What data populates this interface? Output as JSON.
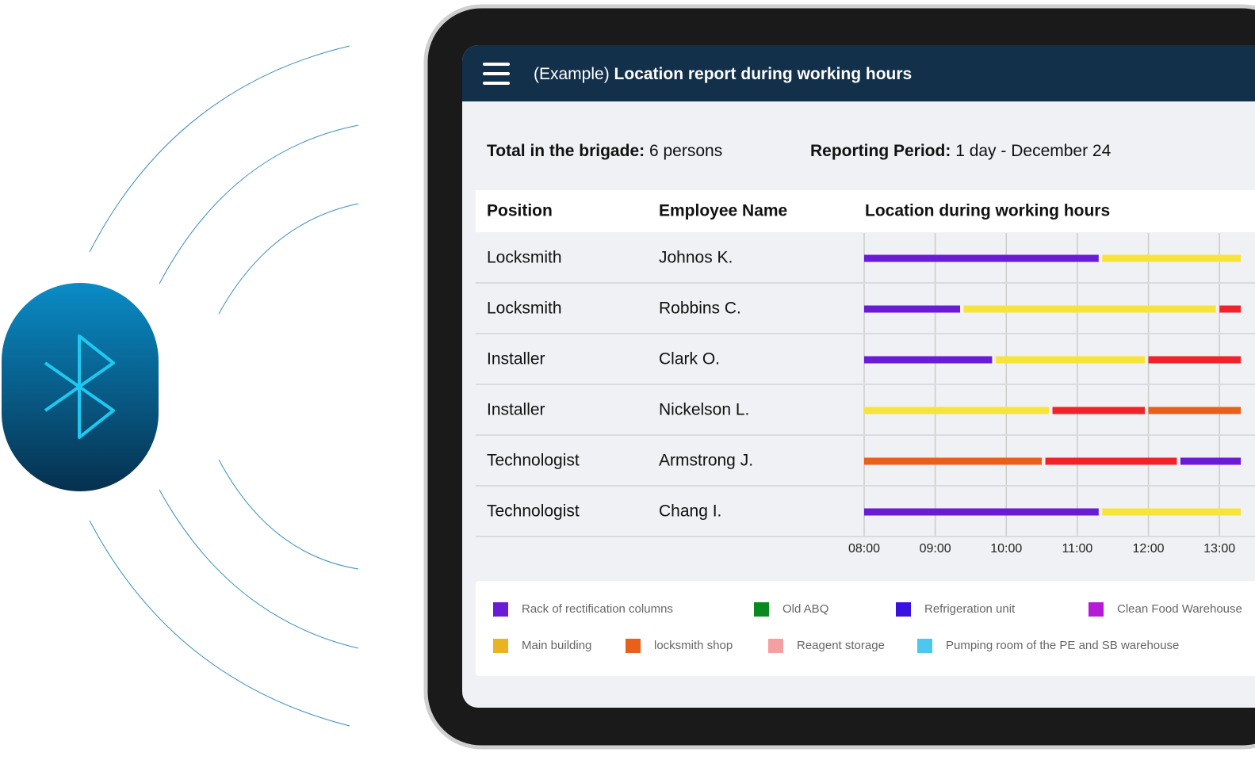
{
  "header": {
    "title_prefix": "(Example)",
    "title": "Location report during working hours"
  },
  "summary": {
    "total_label": "Total in the brigade:",
    "total_value": "6 persons",
    "period_label": "Reporting Period:",
    "period_value": "1 day - December 24"
  },
  "table": {
    "columns": [
      "Position",
      "Employee Name",
      "Location during working hours"
    ],
    "rows": [
      {
        "position": "Locksmith",
        "name": "Johnos K.",
        "segments": [
          {
            "start": 8,
            "end": 11.3,
            "color": "#6a1bd6"
          },
          {
            "start": 11.35,
            "end": 13.3,
            "color": "#f7e43a"
          }
        ]
      },
      {
        "position": "Locksmith",
        "name": "Robbins C.",
        "segments": [
          {
            "start": 8,
            "end": 9.35,
            "color": "#6a1bd6"
          },
          {
            "start": 9.4,
            "end": 12.95,
            "color": "#f7e43a"
          },
          {
            "start": 13,
            "end": 13.3,
            "color": "#f0232a"
          }
        ]
      },
      {
        "position": "Installer",
        "name": "Clark O.",
        "segments": [
          {
            "start": 8,
            "end": 9.8,
            "color": "#6a1bd6"
          },
          {
            "start": 9.85,
            "end": 11.95,
            "color": "#f7e43a"
          },
          {
            "start": 12,
            "end": 13.3,
            "color": "#f0232a"
          }
        ]
      },
      {
        "position": "Installer",
        "name": "Nickelson L.",
        "segments": [
          {
            "start": 8,
            "end": 10.6,
            "color": "#f7e43a"
          },
          {
            "start": 10.65,
            "end": 11.95,
            "color": "#f0232a"
          },
          {
            "start": 12,
            "end": 13.3,
            "color": "#e8601c"
          }
        ]
      },
      {
        "position": "Technologist",
        "name": "Armstrong J.",
        "segments": [
          {
            "start": 8,
            "end": 10.5,
            "color": "#e8601c"
          },
          {
            "start": 10.55,
            "end": 12.4,
            "color": "#f0232a"
          },
          {
            "start": 12.45,
            "end": 13.3,
            "color": "#6a1bd6"
          }
        ]
      },
      {
        "position": "Technologist",
        "name": "Chang I.",
        "segments": [
          {
            "start": 8,
            "end": 11.3,
            "color": "#6a1bd6"
          },
          {
            "start": 11.35,
            "end": 13.3,
            "color": "#f7e43a"
          }
        ]
      }
    ]
  },
  "timeline": {
    "xlim": [
      8,
      13.5
    ],
    "xticks": [
      {
        "value": 8,
        "label": "08:00"
      },
      {
        "value": 9,
        "label": "09:00"
      },
      {
        "value": 10,
        "label": "10:00"
      },
      {
        "value": 11,
        "label": "11:00"
      },
      {
        "value": 12,
        "label": "12:00"
      },
      {
        "value": 13,
        "label": "13:00"
      }
    ]
  },
  "legend": [
    {
      "label": "Rack of rectification columns",
      "color": "#6a1bd6"
    },
    {
      "label": "Old ABQ",
      "color": "#0a8a1e"
    },
    {
      "label": "Refrigeration unit",
      "color": "#3a10e0"
    },
    {
      "label": "Clean Food Warehouse",
      "color": "#b51ad6"
    },
    {
      "label": "Main building",
      "color": "#e8b422"
    },
    {
      "label": "locksmith shop",
      "color": "#e8601c"
    },
    {
      "label": "Reagent storage",
      "color": "#f4a0a0"
    },
    {
      "label": "Pumping room of the PE and SB warehouse",
      "color": "#4cc8f0"
    }
  ]
}
